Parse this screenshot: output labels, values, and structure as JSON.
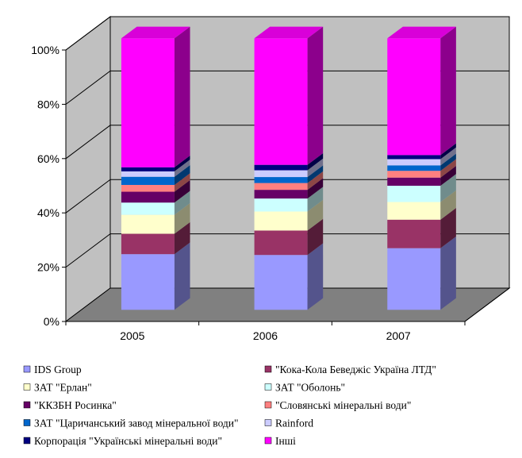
{
  "chart_data": {
    "type": "bar",
    "subtype": "stacked-100-3d",
    "categories": [
      "2005",
      "2006",
      "2007"
    ],
    "y_ticks": [
      "0%",
      "20%",
      "40%",
      "60%",
      "80%",
      "100%"
    ],
    "ylim": [
      0,
      100
    ],
    "grid": true,
    "legend_position": "bottom",
    "series": [
      {
        "name": "IDS Group",
        "color": "#9999FF",
        "values": [
          20.5,
          20.2,
          22.7
        ]
      },
      {
        "name": "\"Кока-Кола Беведжіс Україна ЛТД\"",
        "color": "#993366",
        "values": [
          7.5,
          9.0,
          10.5
        ]
      },
      {
        "name": "ЗАТ \"Ерлан\"",
        "color": "#FFFFCC",
        "values": [
          7.0,
          7.0,
          6.5
        ]
      },
      {
        "name": "ЗАТ \"Оболонь\"",
        "color": "#CCFFFF",
        "values": [
          4.5,
          4.8,
          6.0
        ]
      },
      {
        "name": "\"ККЗБН Росинка\"",
        "color": "#660066",
        "values": [
          4.0,
          3.2,
          3.0
        ]
      },
      {
        "name": "\"Словянські мінеральні води\"",
        "color": "#FF8080",
        "values": [
          2.5,
          2.5,
          2.5
        ]
      },
      {
        "name": "ЗАТ \"Царичанський завод мінеральної води\"",
        "color": "#0066CC",
        "values": [
          3.0,
          2.2,
          2.0
        ]
      },
      {
        "name": "Rainford",
        "color": "#CCCCFF",
        "values": [
          2.0,
          2.5,
          2.3
        ]
      },
      {
        "name": "Корпорація \"Українські мінеральні води\"",
        "color": "#000080",
        "values": [
          1.5,
          2.0,
          1.5
        ]
      },
      {
        "name": "Інші",
        "color": "#FF00FF",
        "values": [
          47.5,
          46.6,
          43.0
        ]
      }
    ]
  }
}
